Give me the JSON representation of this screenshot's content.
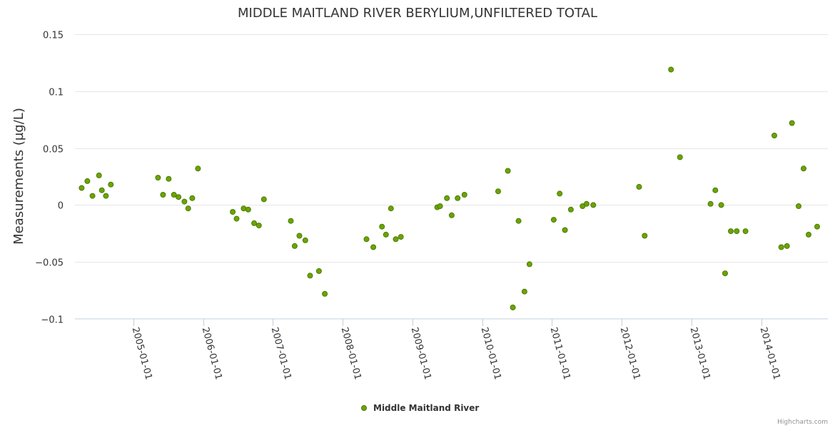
{
  "colors": {
    "point_fill": "#6aa500",
    "point_stroke": "#4e7a00",
    "grid": "#e6e6e6",
    "axis": "#c0d0e0"
  },
  "credits": "Highcharts.com",
  "chart_data": {
    "type": "scatter",
    "title": "MIDDLE MAITLAND RIVER BERYLIUM,UNFILTERED TOTAL",
    "xlabel": "",
    "ylabel": "Measurements (µg/L)",
    "ylim": [
      -0.1,
      0.15
    ],
    "y_ticks": [
      {
        "value": 0.15,
        "label": "0.15"
      },
      {
        "value": 0.1,
        "label": "0.1"
      },
      {
        "value": 0.05,
        "label": "0.05"
      },
      {
        "value": 0,
        "label": "0"
      },
      {
        "value": -0.05,
        "label": "−0.05"
      },
      {
        "value": -0.1,
        "label": "−0.1"
      }
    ],
    "xlim": [
      "2004-03-01",
      "2014-12-15"
    ],
    "x_ticks": [
      "2005-01-01",
      "2006-01-01",
      "2007-01-01",
      "2008-01-01",
      "2009-01-01",
      "2010-01-01",
      "2011-01-01",
      "2012-01-01",
      "2013-01-01",
      "2014-01-01"
    ],
    "grid": true,
    "legend_position": "bottom-center",
    "series": [
      {
        "name": "Middle Maitland River",
        "points": [
          [
            "2004-04-05",
            0.015
          ],
          [
            "2004-05-05",
            0.021
          ],
          [
            "2004-06-01",
            0.008
          ],
          [
            "2004-07-05",
            0.026
          ],
          [
            "2004-07-20",
            0.013
          ],
          [
            "2004-08-10",
            0.008
          ],
          [
            "2004-09-05",
            0.018
          ],
          [
            "2005-05-10",
            0.024
          ],
          [
            "2005-06-05",
            0.009
          ],
          [
            "2005-07-05",
            0.023
          ],
          [
            "2005-08-01",
            0.009
          ],
          [
            "2005-08-25",
            0.007
          ],
          [
            "2005-09-25",
            0.003
          ],
          [
            "2005-10-15",
            -0.003
          ],
          [
            "2005-11-05",
            0.006
          ],
          [
            "2005-12-05",
            0.032
          ],
          [
            "2006-06-05",
            -0.006
          ],
          [
            "2006-06-25",
            -0.012
          ],
          [
            "2006-08-01",
            -0.003
          ],
          [
            "2006-08-25",
            -0.004
          ],
          [
            "2006-09-25",
            -0.016
          ],
          [
            "2006-10-20",
            -0.018
          ],
          [
            "2006-11-15",
            0.005
          ],
          [
            "2007-04-05",
            -0.014
          ],
          [
            "2007-04-25",
            -0.036
          ],
          [
            "2007-05-20",
            -0.027
          ],
          [
            "2007-06-20",
            -0.031
          ],
          [
            "2007-07-15",
            -0.062
          ],
          [
            "2007-08-30",
            -0.058
          ],
          [
            "2007-09-30",
            -0.078
          ],
          [
            "2008-05-05",
            -0.03
          ],
          [
            "2008-06-10",
            -0.037
          ],
          [
            "2008-07-25",
            -0.019
          ],
          [
            "2008-08-15",
            -0.026
          ],
          [
            "2008-09-10",
            -0.003
          ],
          [
            "2008-10-05",
            -0.03
          ],
          [
            "2008-11-01",
            -0.028
          ],
          [
            "2009-05-10",
            -0.002
          ],
          [
            "2009-05-25",
            -0.001
          ],
          [
            "2009-06-30",
            0.006
          ],
          [
            "2009-07-25",
            -0.009
          ],
          [
            "2009-08-25",
            0.006
          ],
          [
            "2009-09-30",
            0.009
          ],
          [
            "2010-03-25",
            0.012
          ],
          [
            "2010-05-15",
            0.03
          ],
          [
            "2010-06-10",
            -0.09
          ],
          [
            "2010-07-10",
            -0.014
          ],
          [
            "2010-08-10",
            -0.076
          ],
          [
            "2010-09-05",
            -0.052
          ],
          [
            "2011-01-10",
            -0.013
          ],
          [
            "2011-02-10",
            0.01
          ],
          [
            "2011-03-10",
            -0.022
          ],
          [
            "2011-04-10",
            -0.004
          ],
          [
            "2011-06-10",
            -0.001
          ],
          [
            "2011-07-01",
            0.001
          ],
          [
            "2011-08-05",
            0.0
          ],
          [
            "2012-04-01",
            0.016
          ],
          [
            "2012-04-30",
            -0.027
          ],
          [
            "2012-09-15",
            0.119
          ],
          [
            "2012-11-01",
            0.042
          ],
          [
            "2013-04-10",
            0.001
          ],
          [
            "2013-05-05",
            0.013
          ],
          [
            "2013-06-05",
            0.0
          ],
          [
            "2013-06-25",
            -0.06
          ],
          [
            "2013-07-25",
            -0.023
          ],
          [
            "2013-08-25",
            -0.023
          ],
          [
            "2013-10-10",
            -0.023
          ],
          [
            "2014-03-10",
            0.061
          ],
          [
            "2014-04-15",
            -0.037
          ],
          [
            "2014-05-15",
            -0.036
          ],
          [
            "2014-06-10",
            0.072
          ],
          [
            "2014-07-15",
            -0.001
          ],
          [
            "2014-08-10",
            0.032
          ],
          [
            "2014-09-05",
            -0.026
          ],
          [
            "2014-10-20",
            -0.019
          ]
        ]
      }
    ]
  }
}
